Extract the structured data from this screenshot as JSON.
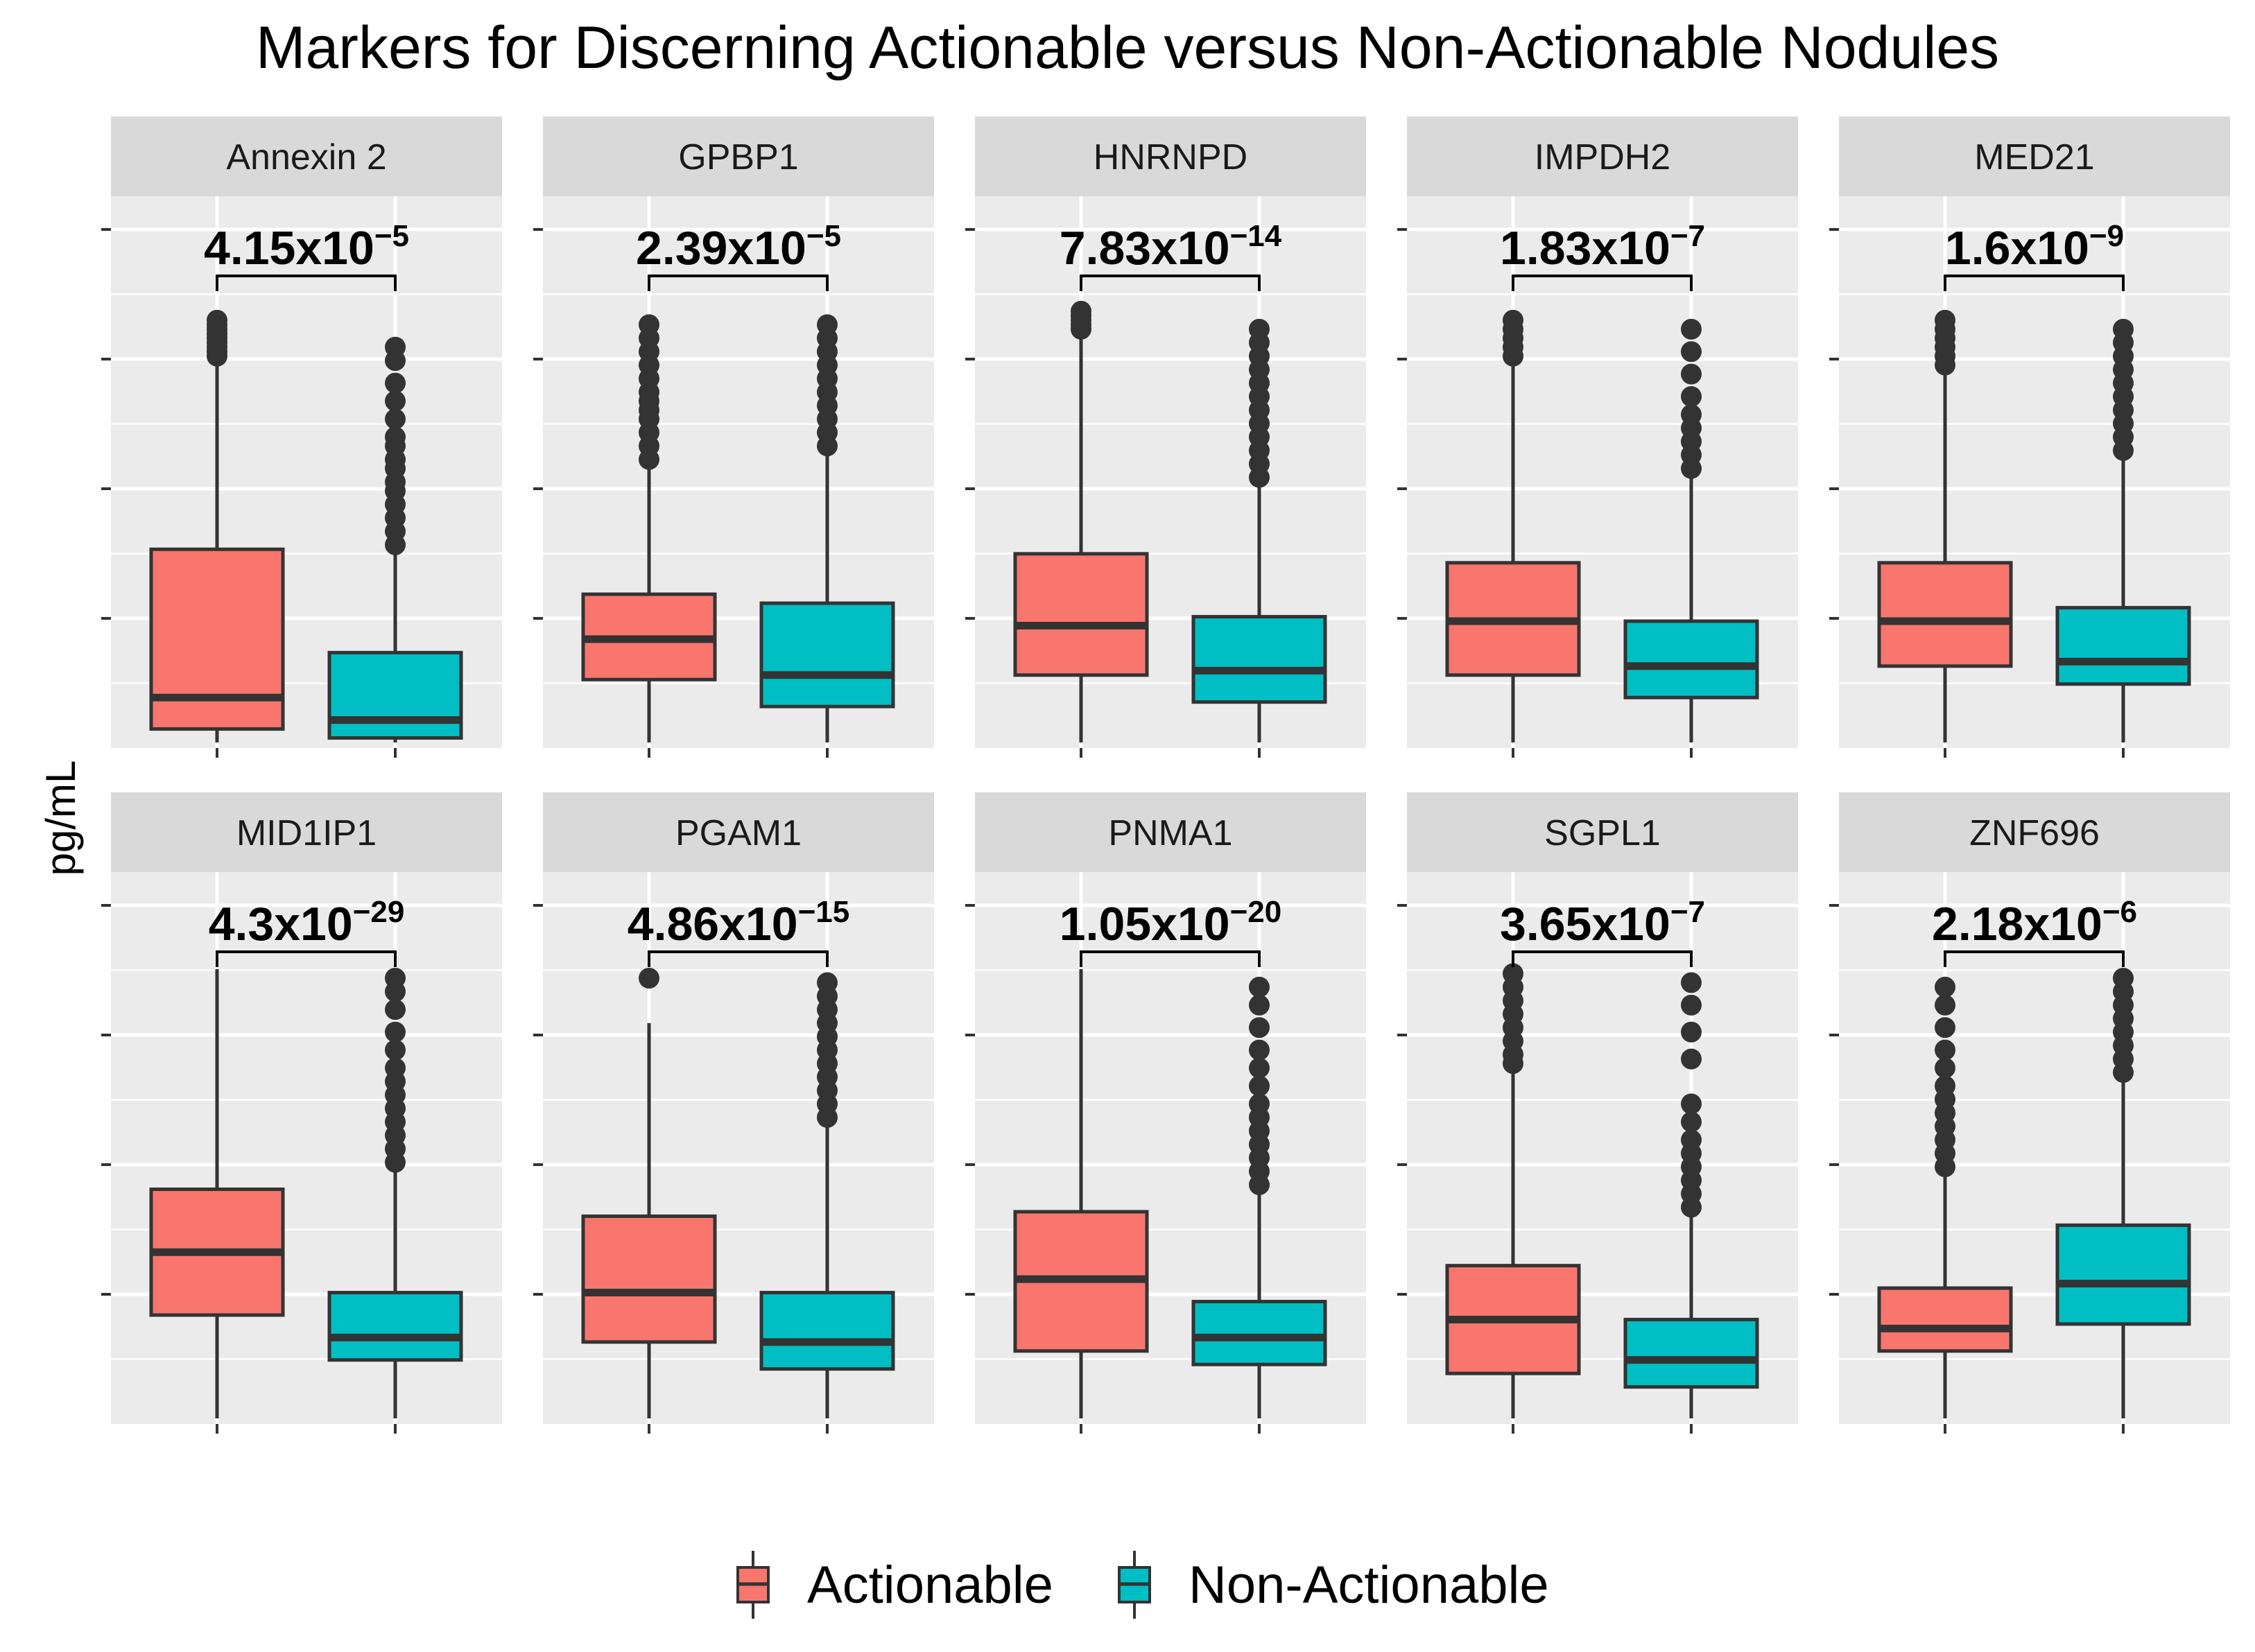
{
  "chart_data": {
    "type": "boxplot",
    "title": "Markers for Discerning Actionable versus Non-Actionable Nodules",
    "ylabel": "pg/mL",
    "xlabel": "",
    "y_scale": "free per facet (tick labels not shown)",
    "groups": [
      "Actionable",
      "Non-Actionable"
    ],
    "colors": {
      "Actionable": "#F8766D",
      "Non-Actionable": "#00BFC4"
    },
    "legend": {
      "position": "bottom",
      "entries": [
        "Actionable",
        "Non-Actionable"
      ]
    },
    "panels": [
      {
        "marker": "Annexin 2",
        "p_base": "4.15x10",
        "p_exp": "−5",
        "ylim": [
          0,
          100
        ],
        "groups": [
          {
            "q1": 3,
            "median": 10,
            "q3": 43,
            "whisker_low": 0,
            "whisker_high": 85,
            "outliers": [
              86,
              87,
              88,
              89,
              90,
              91,
              92,
              93,
              94
            ]
          },
          {
            "q1": 1,
            "median": 5,
            "q3": 20,
            "whisker_low": 0,
            "whisker_high": 43,
            "outliers": [
              44,
              47,
              50,
              53,
              56,
              58,
              61,
              63,
              66,
              68,
              72,
              76,
              80,
              85,
              88
            ]
          }
        ]
      },
      {
        "marker": "GPBP1",
        "p_base": "2.39x10",
        "p_exp": "−5",
        "ylim": [
          0,
          100
        ],
        "groups": [
          {
            "q1": 14,
            "median": 23,
            "q3": 33,
            "whisker_low": 0,
            "whisker_high": 62,
            "outliers": [
              63,
              66,
              69,
              72,
              74,
              76,
              78,
              81,
              84,
              87,
              90,
              93
            ]
          },
          {
            "q1": 8,
            "median": 15,
            "q3": 31,
            "whisker_low": 0,
            "whisker_high": 65,
            "outliers": [
              66,
              69,
              72,
              75,
              78,
              81,
              84,
              87,
              90,
              93
            ]
          }
        ]
      },
      {
        "marker": "HNRNPD",
        "p_base": "7.83x10",
        "p_exp": "−14",
        "ylim": [
          0,
          100
        ],
        "groups": [
          {
            "q1": 15,
            "median": 26,
            "q3": 42,
            "whisker_low": 0,
            "whisker_high": 92,
            "outliers": [
              92,
              93,
              94,
              95,
              96
            ]
          },
          {
            "q1": 9,
            "median": 16,
            "q3": 28,
            "whisker_low": 0,
            "whisker_high": 58,
            "outliers": [
              59,
              62,
              65,
              68,
              71,
              74,
              77,
              80,
              83,
              86,
              89,
              92
            ]
          }
        ]
      },
      {
        "marker": "IMPDH2",
        "p_base": "1.83x10",
        "p_exp": "−7",
        "ylim": [
          0,
          100
        ],
        "groups": [
          {
            "q1": 15,
            "median": 27,
            "q3": 40,
            "whisker_low": 0,
            "whisker_high": 86,
            "outliers": [
              86,
              88,
              90,
              92,
              94
            ]
          },
          {
            "q1": 10,
            "median": 17,
            "q3": 27,
            "whisker_low": 0,
            "whisker_high": 60,
            "outliers": [
              61,
              64,
              67,
              70,
              73,
              77,
              82,
              87,
              92
            ]
          }
        ]
      },
      {
        "marker": "MED21",
        "p_base": "1.6x10",
        "p_exp": "−9",
        "ylim": [
          0,
          100
        ],
        "groups": [
          {
            "q1": 17,
            "median": 27,
            "q3": 40,
            "whisker_low": 0,
            "whisker_high": 84,
            "outliers": [
              84,
              86,
              88,
              90,
              92,
              94
            ]
          },
          {
            "q1": 13,
            "median": 18,
            "q3": 30,
            "whisker_low": 0,
            "whisker_high": 64,
            "outliers": [
              65,
              68,
              71,
              74,
              77,
              80,
              83,
              86,
              89,
              92
            ]
          }
        ]
      },
      {
        "marker": "MID1IP1",
        "p_base": "4.3x10",
        "p_exp": "−29",
        "ylim": [
          0,
          100
        ],
        "groups": [
          {
            "q1": 23,
            "median": 37,
            "q3": 51,
            "whisker_low": 0,
            "whisker_high": 100,
            "outliers": []
          },
          {
            "q1": 13,
            "median": 18,
            "q3": 28,
            "whisker_low": 0,
            "whisker_high": 56,
            "outliers": [
              57,
              60,
              63,
              66,
              69,
              72,
              75,
              78,
              82,
              86,
              91,
              95,
              98
            ]
          }
        ]
      },
      {
        "marker": "PGAM1",
        "p_base": "4.86x10",
        "p_exp": "−15",
        "ylim": [
          0,
          100
        ],
        "groups": [
          {
            "q1": 17,
            "median": 28,
            "q3": 45,
            "whisker_low": 0,
            "whisker_high": 88,
            "outliers": [
              98
            ]
          },
          {
            "q1": 11,
            "median": 17,
            "q3": 28,
            "whisker_low": 0,
            "whisker_high": 66,
            "outliers": [
              67,
              70,
              73,
              76,
              79,
              82,
              85,
              88,
              91,
              94,
              97
            ]
          }
        ]
      },
      {
        "marker": "PNMA1",
        "p_base": "1.05x10",
        "p_exp": "−20",
        "ylim": [
          0,
          100
        ],
        "groups": [
          {
            "q1": 15,
            "median": 31,
            "q3": 46,
            "whisker_low": 0,
            "whisker_high": 100,
            "outliers": []
          },
          {
            "q1": 12,
            "median": 18,
            "q3": 26,
            "whisker_low": 0,
            "whisker_high": 51,
            "outliers": [
              52,
              55,
              58,
              61,
              64,
              67,
              70,
              74,
              78,
              82,
              87,
              92,
              96
            ]
          }
        ]
      },
      {
        "marker": "SGPL1",
        "p_base": "3.65x10",
        "p_exp": "−7",
        "ylim": [
          0,
          100
        ],
        "groups": [
          {
            "q1": 10,
            "median": 22,
            "q3": 34,
            "whisker_low": 0,
            "whisker_high": 78,
            "outliers": [
              79,
              81,
              84,
              87,
              90,
              93,
              96,
              99
            ]
          },
          {
            "q1": 7,
            "median": 13,
            "q3": 22,
            "whisker_low": 0,
            "whisker_high": 46,
            "outliers": [
              47,
              50,
              53,
              56,
              59,
              62,
              66,
              70,
              80,
              86,
              92,
              97
            ]
          }
        ]
      },
      {
        "marker": "ZNF696",
        "p_base": "2.18x10",
        "p_exp": "−6",
        "ylim": [
          0,
          100
        ],
        "groups": [
          {
            "q1": 15,
            "median": 20,
            "q3": 29,
            "whisker_low": 0,
            "whisker_high": 55,
            "outliers": [
              56,
              59,
              62,
              65,
              68,
              71,
              74,
              78,
              82,
              87,
              92,
              96
            ]
          },
          {
            "q1": 21,
            "median": 30,
            "q3": 43,
            "whisker_low": 0,
            "whisker_high": 76,
            "outliers": [
              77,
              80,
              83,
              86,
              89,
              92,
              95,
              98
            ]
          }
        ]
      }
    ]
  }
}
